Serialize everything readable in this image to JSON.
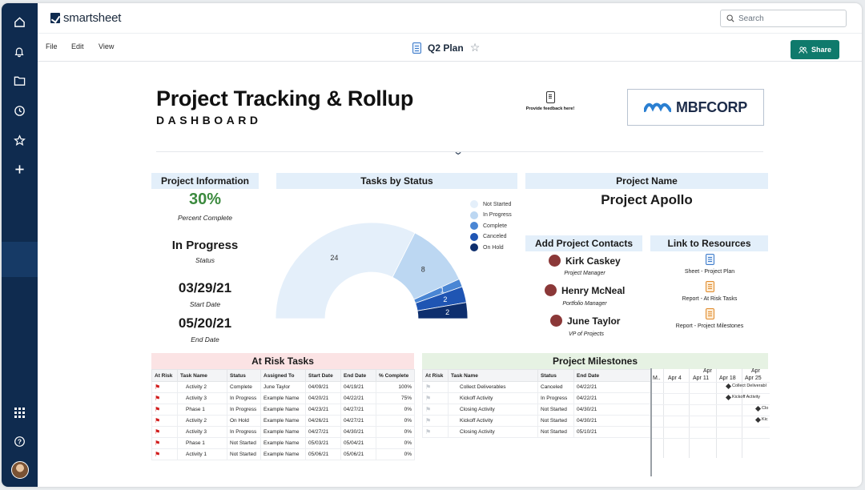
{
  "app": {
    "brand": "smartsheet",
    "search_placeholder": "Search",
    "menu": [
      "File",
      "Edit",
      "View"
    ],
    "sheet_title": "Q2 Plan",
    "share_label": "Share"
  },
  "rail_icons": [
    "home-icon",
    "bell-icon",
    "folder-icon",
    "clock-icon",
    "star-icon",
    "plus-icon",
    "apps-grid-icon",
    "help-icon"
  ],
  "dashboard": {
    "title": "Project Tracking & Rollup",
    "subtitle": "DASHBOARD",
    "feedback_text": "Provide feedback here!",
    "corp_name": "MBFCORP"
  },
  "project_info": {
    "header": "Project Information",
    "percent": "30%",
    "percent_caption": "Percent Complete",
    "status": "In Progress",
    "status_caption": "Status",
    "start_date": "03/29/21",
    "start_caption": "Start Date",
    "end_date": "05/20/21",
    "end_caption": "End Date",
    "percent_color": "#3b8a3e"
  },
  "tasks_by_status": {
    "header": "Tasks by Status"
  },
  "chart_data": {
    "type": "pie",
    "title": "Tasks by Status",
    "style": "half-donut",
    "categories": [
      "Not Started",
      "In Progress",
      "Complete",
      "Canceled",
      "On Hold"
    ],
    "values": [
      24,
      8,
      1,
      2,
      2
    ],
    "colors": [
      "#e4effa",
      "#bcd7f2",
      "#4a86d4",
      "#1f55b3",
      "#0e2f6e"
    ],
    "legend_position": "top-right"
  },
  "project_name": {
    "header": "Project Name",
    "value": "Project Apollo"
  },
  "contacts": {
    "header": "Add Project Contacts",
    "people": [
      {
        "name": "Kirk Caskey",
        "role": "Project Manager"
      },
      {
        "name": "Henry McNeal",
        "role": "Portfolio Manager"
      },
      {
        "name": "June Taylor",
        "role": "VP of Projects"
      }
    ]
  },
  "resources": {
    "header": "Link to Resources",
    "links": [
      {
        "label": "Sheet - Project Plan",
        "icon": "sheet-icon"
      },
      {
        "label": "Report - At Risk Tasks",
        "icon": "report-icon"
      },
      {
        "label": "Report - Project Milestones",
        "icon": "report-icon"
      }
    ]
  },
  "at_risk": {
    "header": "At Risk Tasks",
    "header_color": "#fbe3e4",
    "columns": [
      "At Risk",
      "Task Name",
      "Status",
      "Assigned To",
      "Start Date",
      "End Date",
      "% Complete"
    ],
    "rows": [
      [
        "Activity 2",
        "Complete",
        "June Taylor",
        "04/09/21",
        "04/19/21",
        "100%"
      ],
      [
        "Activity 3",
        "In Progress",
        "Example Name",
        "04/20/21",
        "04/22/21",
        "75%"
      ],
      [
        "Phase 1",
        "In Progress",
        "Example Name",
        "04/23/21",
        "04/27/21",
        "0%"
      ],
      [
        "Activity 2",
        "On Hold",
        "Example Name",
        "04/26/21",
        "04/27/21",
        "0%"
      ],
      [
        "Activity 3",
        "In Progress",
        "Example Name",
        "04/27/21",
        "04/30/21",
        "0%"
      ],
      [
        "Phase 1",
        "Not Started",
        "Example Name",
        "05/03/21",
        "05/04/21",
        "0%"
      ],
      [
        "Activity 1",
        "Not Started",
        "Example Name",
        "05/06/21",
        "05/06/21",
        "0%"
      ]
    ]
  },
  "milestones": {
    "header": "Project Milestones",
    "header_color": "#e6f2e3",
    "columns": [
      "At Risk",
      "Task Name",
      "Status",
      "End Date"
    ],
    "rows": [
      [
        "Collect Deliverables",
        "Canceled",
        "04/22/21"
      ],
      [
        "Kickoff Activity",
        "In Progress",
        "04/22/21"
      ],
      [
        "Closing Activity",
        "Not Started",
        "04/30/21"
      ],
      [
        "Kickoff Activity",
        "Not Started",
        "04/30/21"
      ],
      [
        "Closing Activity",
        "Not Started",
        "05/10/21"
      ]
    ],
    "gantt": {
      "months": [
        "Apr",
        "Apr"
      ],
      "weeks": [
        "M..",
        "Apr 4",
        "Apr 11",
        "Apr 18",
        "Apr 25"
      ],
      "items": [
        "Collect Deliverabl",
        "Kickoff Activity",
        "Clo",
        "Kic"
      ]
    }
  }
}
